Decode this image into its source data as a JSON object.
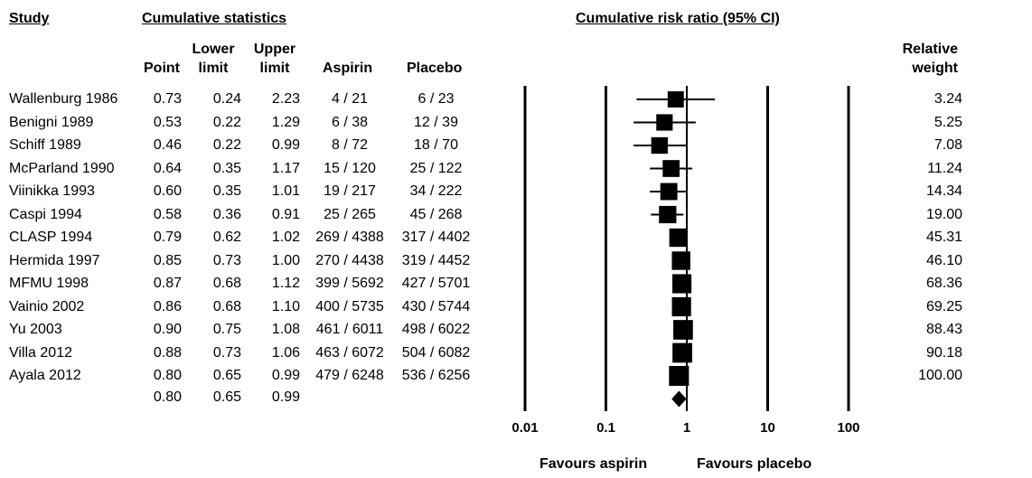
{
  "headers": {
    "study": "Study",
    "cumulative_statistics": "Cumulative statistics",
    "plot_title": "Cumulative risk ratio (95% CI)",
    "point": "Point",
    "lower_1": "Lower",
    "lower_2": "limit",
    "upper_1": "Upper",
    "upper_2": "limit",
    "aspirin": "Aspirin",
    "placebo": "Placebo",
    "weight_1": "Relative",
    "weight_2": "weight"
  },
  "rows": [
    {
      "study": "Wallenburg 1986",
      "point": "0.73",
      "lower": "0.24",
      "upper": "2.23",
      "aspirin": "4 / 21",
      "placebo": "6 / 23",
      "weight": "3.24"
    },
    {
      "study": "Benigni 1989",
      "point": "0.53",
      "lower": "0.22",
      "upper": "1.29",
      "aspirin": "6 / 38",
      "placebo": "12 / 39",
      "weight": "5.25"
    },
    {
      "study": "Schiff 1989",
      "point": "0.46",
      "lower": "0.22",
      "upper": "0.99",
      "aspirin": "8 / 72",
      "placebo": "18 / 70",
      "weight": "7.08"
    },
    {
      "study": "McParland 1990",
      "point": "0.64",
      "lower": "0.35",
      "upper": "1.17",
      "aspirin": "15 / 120",
      "placebo": "25 / 122",
      "weight": "11.24"
    },
    {
      "study": "Viinikka 1993",
      "point": "0.60",
      "lower": "0.35",
      "upper": "1.01",
      "aspirin": "19 / 217",
      "placebo": "34 / 222",
      "weight": "14.34"
    },
    {
      "study": "Caspi 1994",
      "point": "0.58",
      "lower": "0.36",
      "upper": "0.91",
      "aspirin": "25 / 265",
      "placebo": "45 / 268",
      "weight": "19.00"
    },
    {
      "study": "CLASP 1994",
      "point": "0.79",
      "lower": "0.62",
      "upper": "1.02",
      "aspirin": "269 / 4388",
      "placebo": "317 / 4402",
      "weight": "45.31"
    },
    {
      "study": "Hermida 1997",
      "point": "0.85",
      "lower": "0.73",
      "upper": "1.00",
      "aspirin": "270 / 4438",
      "placebo": "319 / 4452",
      "weight": "46.10"
    },
    {
      "study": "MFMU 1998",
      "point": "0.87",
      "lower": "0.68",
      "upper": "1.12",
      "aspirin": "399 / 5692",
      "placebo": "427 / 5701",
      "weight": "68.36"
    },
    {
      "study": "Vainio 2002",
      "point": "0.86",
      "lower": "0.68",
      "upper": "1.10",
      "aspirin": "400 / 5735",
      "placebo": "430 / 5744",
      "weight": "69.25"
    },
    {
      "study": "Yu 2003",
      "point": "0.90",
      "lower": "0.75",
      "upper": "1.08",
      "aspirin": "461 / 6011",
      "placebo": "498 / 6022",
      "weight": "88.43"
    },
    {
      "study": "Villa 2012",
      "point": "0.88",
      "lower": "0.73",
      "upper": "1.06",
      "aspirin": "463 / 6072",
      "placebo": "504 / 6082",
      "weight": "90.18"
    },
    {
      "study": "Ayala 2012",
      "point": "0.80",
      "lower": "0.65",
      "upper": "0.99",
      "aspirin": "479 / 6248",
      "placebo": "536 / 6256",
      "weight": "100.00"
    }
  ],
  "summary": {
    "point": "0.80",
    "lower": "0.65",
    "upper": "0.99"
  },
  "x_ticks": [
    "0.01",
    "0.1",
    "1",
    "10",
    "100"
  ],
  "favours_left": "Favours aspirin",
  "favours_right": "Favours placebo",
  "chart_data": {
    "type": "forest",
    "title": "Cumulative risk ratio (95% CI)",
    "x_scale": "log",
    "xlim": [
      0.01,
      100
    ],
    "x_ticks": [
      0.01,
      0.1,
      1,
      10,
      100
    ],
    "reference_line": 1,
    "series": [
      {
        "name": "Wallenburg 1986",
        "point": 0.73,
        "lower": 0.24,
        "upper": 2.23,
        "weight": 3.24
      },
      {
        "name": "Benigni 1989",
        "point": 0.53,
        "lower": 0.22,
        "upper": 1.29,
        "weight": 5.25
      },
      {
        "name": "Schiff 1989",
        "point": 0.46,
        "lower": 0.22,
        "upper": 0.99,
        "weight": 7.08
      },
      {
        "name": "McParland 1990",
        "point": 0.64,
        "lower": 0.35,
        "upper": 1.17,
        "weight": 11.24
      },
      {
        "name": "Viinikka 1993",
        "point": 0.6,
        "lower": 0.35,
        "upper": 1.01,
        "weight": 14.34
      },
      {
        "name": "Caspi 1994",
        "point": 0.58,
        "lower": 0.36,
        "upper": 0.91,
        "weight": 19.0
      },
      {
        "name": "CLASP 1994",
        "point": 0.79,
        "lower": 0.62,
        "upper": 1.02,
        "weight": 45.31
      },
      {
        "name": "Hermida 1997",
        "point": 0.85,
        "lower": 0.73,
        "upper": 1.0,
        "weight": 46.1
      },
      {
        "name": "MFMU 1998",
        "point": 0.87,
        "lower": 0.68,
        "upper": 1.12,
        "weight": 68.36
      },
      {
        "name": "Vainio 2002",
        "point": 0.86,
        "lower": 0.68,
        "upper": 1.1,
        "weight": 69.25
      },
      {
        "name": "Yu 2003",
        "point": 0.9,
        "lower": 0.75,
        "upper": 1.08,
        "weight": 88.43
      },
      {
        "name": "Villa 2012",
        "point": 0.88,
        "lower": 0.73,
        "upper": 1.06,
        "weight": 90.18
      },
      {
        "name": "Ayala 2012",
        "point": 0.8,
        "lower": 0.65,
        "upper": 0.99,
        "weight": 100.0
      }
    ],
    "summary": {
      "point": 0.8,
      "lower": 0.65,
      "upper": 0.99
    },
    "xlabel_left": "Favours aspirin",
    "xlabel_right": "Favours placebo"
  }
}
